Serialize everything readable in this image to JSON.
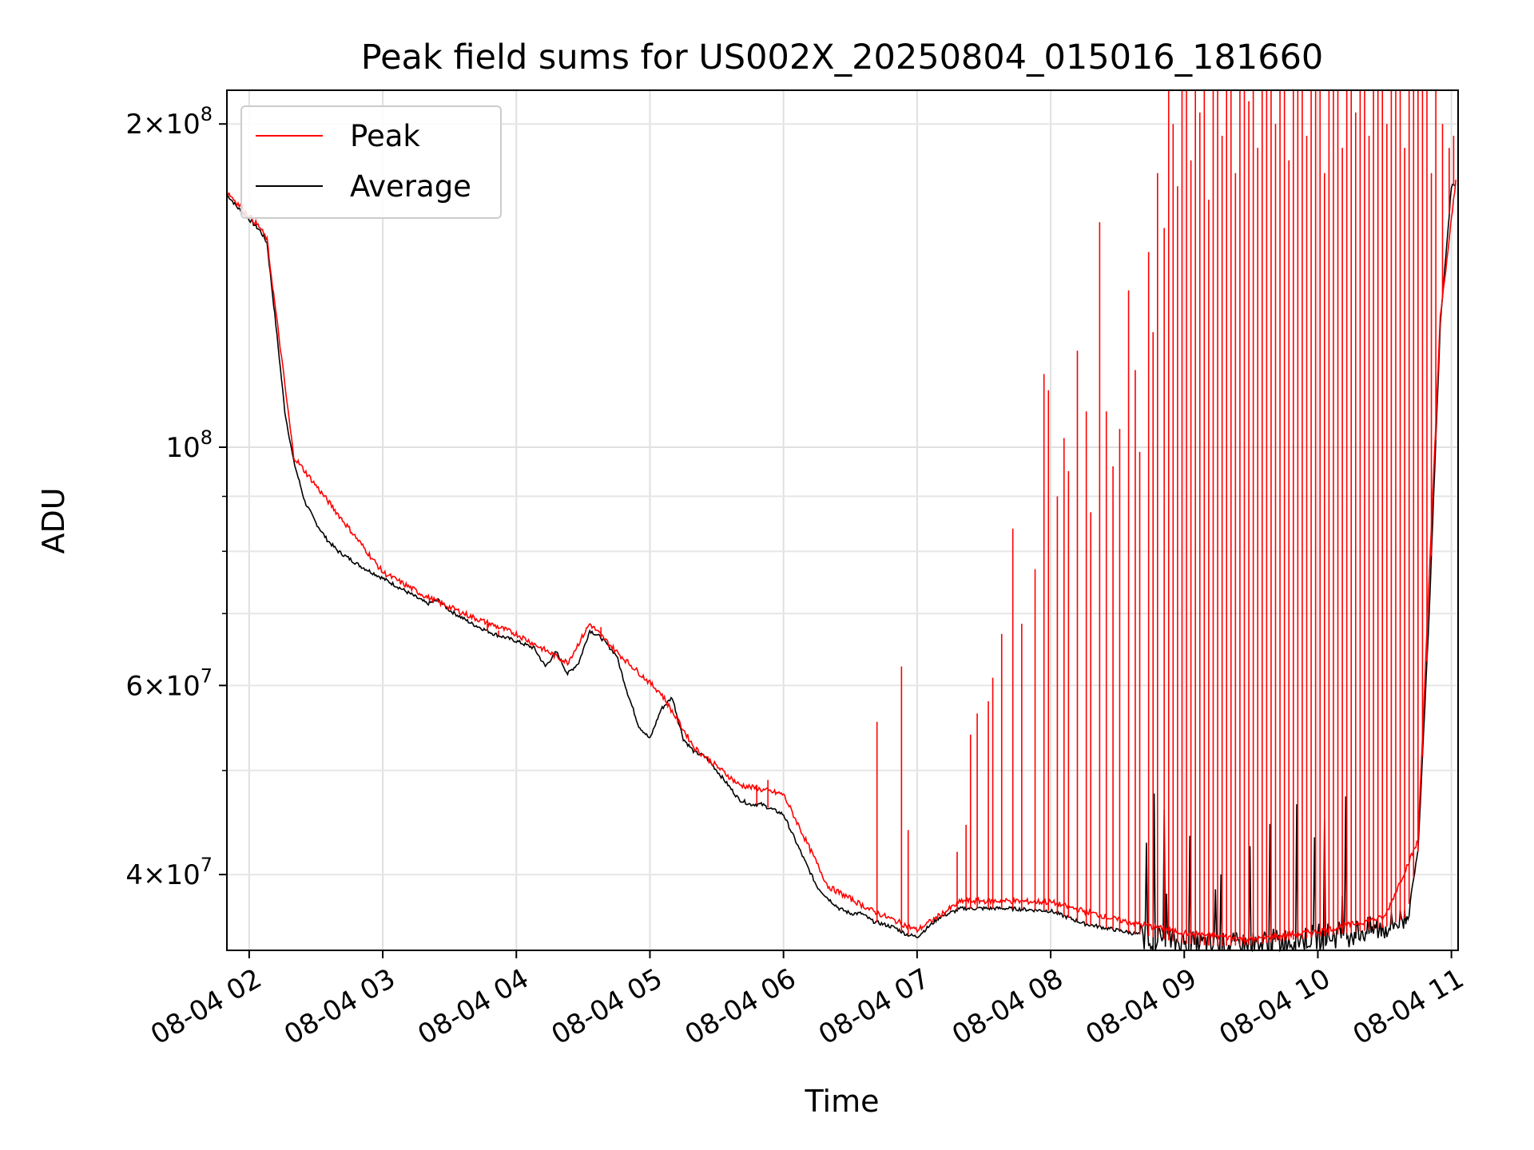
{
  "chart_data": {
    "type": "line",
    "title": "Peak field sums for US002X_20250804_015016_181660",
    "xlabel": "Time",
    "ylabel": "ADU",
    "yscale": "log",
    "xlim": [
      "2025-08-04 01:50",
      "2025-08-04 11:03"
    ],
    "ylim": [
      34000000,
      215000000
    ],
    "grid": true,
    "legend": {
      "placement": "top-left",
      "entries": [
        "Peak",
        "Average"
      ]
    },
    "x_ticks": [
      "08-04 02",
      "08-04 03",
      "08-04 04",
      "08-04 05",
      "08-04 06",
      "08-04 07",
      "08-04 08",
      "08-04 09",
      "08-04 10",
      "08-04 11"
    ],
    "y_ticks": [
      {
        "value": 200000000,
        "mantissa": "2",
        "exponent": "8"
      },
      {
        "value": 100000000,
        "mantissa": "",
        "exponent": "8"
      },
      {
        "value": 60000000,
        "mantissa": "6",
        "exponent": "7"
      },
      {
        "value": 40000000,
        "mantissa": "4",
        "exponent": "7"
      }
    ],
    "series": [
      {
        "name": "Average",
        "color": "#000000",
        "x": [
          "2025-08-04 01:50",
          "2025-08-04 01:55",
          "2025-08-04 02:00",
          "2025-08-04 02:05",
          "2025-08-04 02:08",
          "2025-08-04 02:12",
          "2025-08-04 02:16",
          "2025-08-04 02:20",
          "2025-08-04 02:25",
          "2025-08-04 02:30",
          "2025-08-04 02:35",
          "2025-08-04 02:40",
          "2025-08-04 02:50",
          "2025-08-04 03:00",
          "2025-08-04 03:10",
          "2025-08-04 03:20",
          "2025-08-04 03:25",
          "2025-08-04 03:30",
          "2025-08-04 03:40",
          "2025-08-04 03:50",
          "2025-08-04 04:00",
          "2025-08-04 04:08",
          "2025-08-04 04:13",
          "2025-08-04 04:18",
          "2025-08-04 04:23",
          "2025-08-04 04:28",
          "2025-08-04 04:33",
          "2025-08-04 04:38",
          "2025-08-04 04:45",
          "2025-08-04 04:50",
          "2025-08-04 04:55",
          "2025-08-04 05:00",
          "2025-08-04 05:05",
          "2025-08-04 05:10",
          "2025-08-04 05:15",
          "2025-08-04 05:20",
          "2025-08-04 05:25",
          "2025-08-04 05:30",
          "2025-08-04 05:35",
          "2025-08-04 05:40",
          "2025-08-04 05:45",
          "2025-08-04 05:50",
          "2025-08-04 06:00",
          "2025-08-04 06:10",
          "2025-08-04 06:15",
          "2025-08-04 06:20",
          "2025-08-04 06:25",
          "2025-08-04 06:30",
          "2025-08-04 06:35",
          "2025-08-04 06:40",
          "2025-08-04 06:50",
          "2025-08-04 06:55",
          "2025-08-04 07:00",
          "2025-08-04 07:10",
          "2025-08-04 07:20",
          "2025-08-04 07:40",
          "2025-08-04 08:00",
          "2025-08-04 08:15",
          "2025-08-04 08:30",
          "2025-08-04 08:45",
          "2025-08-04 09:00",
          "2025-08-04 09:15",
          "2025-08-04 09:30",
          "2025-08-04 09:45",
          "2025-08-04 10:00",
          "2025-08-04 10:15",
          "2025-08-04 10:30",
          "2025-08-04 10:40",
          "2025-08-04 10:45",
          "2025-08-04 10:50",
          "2025-08-04 10:55",
          "2025-08-04 11:00",
          "2025-08-04 11:02"
        ],
        "values": [
          172000000,
          167000000,
          163000000,
          159000000,
          155000000,
          130000000,
          108000000,
          97000000,
          89000000,
          85000000,
          82000000,
          80000000,
          77500000,
          75500000,
          73500000,
          71500000,
          72000000,
          70500000,
          68500000,
          67000000,
          66000000,
          65000000,
          62500000,
          64500000,
          61500000,
          63000000,
          67500000,
          66500000,
          64000000,
          59000000,
          55000000,
          53500000,
          57000000,
          58500000,
          53500000,
          52000000,
          51500000,
          50000000,
          48500000,
          47000000,
          46500000,
          46500000,
          45500000,
          41000000,
          39000000,
          38000000,
          37200000,
          36800000,
          36800000,
          36200000,
          35700000,
          35200000,
          35000000,
          36500000,
          37200000,
          37200000,
          37000000,
          36000000,
          35500000,
          35000000,
          34500000,
          34300000,
          34400000,
          34700000,
          35000000,
          35300000,
          35700000,
          36500000,
          42000000,
          70000000,
          130000000,
          175000000,
          176000000
        ]
      },
      {
        "name": "Peak",
        "color": "#ff0000",
        "x": [
          "2025-08-04 01:50",
          "2025-08-04 02:05",
          "2025-08-04 02:08",
          "2025-08-04 02:20",
          "2025-08-04 03:00",
          "2025-08-04 03:20",
          "2025-08-04 03:40",
          "2025-08-04 04:00",
          "2025-08-04 04:23",
          "2025-08-04 04:33",
          "2025-08-04 04:45",
          "2025-08-04 05:05",
          "2025-08-04 05:20",
          "2025-08-04 05:40",
          "2025-08-04 06:00",
          "2025-08-04 06:20",
          "2025-08-04 06:40",
          "2025-08-04 07:00",
          "2025-08-04 07:20",
          "2025-08-04 07:40",
          "2025-08-04 08:00",
          "2025-08-04 08:30",
          "2025-08-04 09:00",
          "2025-08-04 09:30",
          "2025-08-04 10:00",
          "2025-08-04 10:30",
          "2025-08-04 10:45",
          "2025-08-04 10:55",
          "2025-08-04 11:02"
        ],
        "values": [
          173000000,
          160000000,
          156000000,
          98000000,
          76500000,
          72500000,
          69500000,
          67000000,
          63000000,
          68500000,
          64500000,
          59000000,
          52500000,
          48500000,
          47500000,
          39000000,
          37000000,
          35500000,
          37800000,
          37800000,
          37700000,
          36300000,
          35300000,
          34800000,
          35400000,
          36500000,
          43000000,
          132000000,
          177000000
        ]
      }
    ],
    "spikes": {
      "series": "Peak",
      "samples": [
        {
          "x": "2025-08-04 03:47",
          "y": 68500000
        },
        {
          "x": "2025-08-04 03:52",
          "y": 67500000
        },
        {
          "x": "2025-08-04 04:38",
          "y": 68000000
        },
        {
          "x": "2025-08-04 05:48",
          "y": 48500000
        },
        {
          "x": "2025-08-04 05:53",
          "y": 49000000
        },
        {
          "x": "2025-08-04 06:42",
          "y": 55500000
        },
        {
          "x": "2025-08-04 06:53",
          "y": 62500000
        },
        {
          "x": "2025-08-04 06:56",
          "y": 44000000
        },
        {
          "x": "2025-08-04 07:18",
          "y": 42000000
        },
        {
          "x": "2025-08-04 07:22",
          "y": 44500000
        },
        {
          "x": "2025-08-04 07:24",
          "y": 54000000
        },
        {
          "x": "2025-08-04 07:27",
          "y": 56500000
        },
        {
          "x": "2025-08-04 07:32",
          "y": 58000000
        },
        {
          "x": "2025-08-04 07:34",
          "y": 61000000
        },
        {
          "x": "2025-08-04 07:38",
          "y": 67000000
        },
        {
          "x": "2025-08-04 07:43",
          "y": 84000000
        },
        {
          "x": "2025-08-04 07:47",
          "y": 68500000
        },
        {
          "x": "2025-08-04 07:53",
          "y": 77000000
        },
        {
          "x": "2025-08-04 07:57",
          "y": 117000000
        },
        {
          "x": "2025-08-04 07:59",
          "y": 113000000
        },
        {
          "x": "2025-08-04 08:03",
          "y": 90000000
        },
        {
          "x": "2025-08-04 08:06",
          "y": 102000000
        },
        {
          "x": "2025-08-04 08:08",
          "y": 95000000
        },
        {
          "x": "2025-08-04 08:12",
          "y": 123000000
        },
        {
          "x": "2025-08-04 08:16",
          "y": 108000000
        },
        {
          "x": "2025-08-04 08:18",
          "y": 87000000
        },
        {
          "x": "2025-08-04 08:22",
          "y": 162000000
        },
        {
          "x": "2025-08-04 08:25",
          "y": 108000000
        },
        {
          "x": "2025-08-04 08:28",
          "y": 96000000
        },
        {
          "x": "2025-08-04 08:31",
          "y": 104000000
        },
        {
          "x": "2025-08-04 08:35",
          "y": 140000000
        },
        {
          "x": "2025-08-04 08:38",
          "y": 118000000
        },
        {
          "x": "2025-08-04 08:40",
          "y": 99000000
        },
        {
          "x": "2025-08-04 08:44",
          "y": 152000000
        },
        {
          "x": "2025-08-04 08:46",
          "y": 128000000
        },
        {
          "x": "2025-08-04 08:48",
          "y": 180000000
        },
        {
          "x": "2025-08-04 08:51",
          "y": 160000000
        },
        {
          "x": "2025-08-04 08:53",
          "y": 215000000
        },
        {
          "x": "2025-08-04 08:55",
          "y": 200000000
        },
        {
          "x": "2025-08-04 08:57",
          "y": 175000000
        },
        {
          "x": "2025-08-04 08:59",
          "y": 215000000
        },
        {
          "x": "2025-08-04 09:01",
          "y": 215000000
        },
        {
          "x": "2025-08-04 09:03",
          "y": 185000000
        },
        {
          "x": "2025-08-04 09:05",
          "y": 215000000
        },
        {
          "x": "2025-08-04 09:07",
          "y": 205000000
        },
        {
          "x": "2025-08-04 09:09",
          "y": 215000000
        },
        {
          "x": "2025-08-04 09:11",
          "y": 170000000
        },
        {
          "x": "2025-08-04 09:13",
          "y": 215000000
        },
        {
          "x": "2025-08-04 09:15",
          "y": 215000000
        },
        {
          "x": "2025-08-04 09:17",
          "y": 195000000
        },
        {
          "x": "2025-08-04 09:19",
          "y": 215000000
        },
        {
          "x": "2025-08-04 09:21",
          "y": 215000000
        },
        {
          "x": "2025-08-04 09:23",
          "y": 180000000
        },
        {
          "x": "2025-08-04 09:25",
          "y": 215000000
        },
        {
          "x": "2025-08-04 09:27",
          "y": 215000000
        },
        {
          "x": "2025-08-04 09:29",
          "y": 210000000
        },
        {
          "x": "2025-08-04 09:31",
          "y": 215000000
        },
        {
          "x": "2025-08-04 09:33",
          "y": 190000000
        },
        {
          "x": "2025-08-04 09:35",
          "y": 215000000
        },
        {
          "x": "2025-08-04 09:37",
          "y": 215000000
        },
        {
          "x": "2025-08-04 09:39",
          "y": 215000000
        },
        {
          "x": "2025-08-04 09:41",
          "y": 200000000
        },
        {
          "x": "2025-08-04 09:43",
          "y": 215000000
        },
        {
          "x": "2025-08-04 09:45",
          "y": 215000000
        },
        {
          "x": "2025-08-04 09:47",
          "y": 185000000
        },
        {
          "x": "2025-08-04 09:49",
          "y": 215000000
        },
        {
          "x": "2025-08-04 09:51",
          "y": 215000000
        },
        {
          "x": "2025-08-04 09:53",
          "y": 215000000
        },
        {
          "x": "2025-08-04 09:55",
          "y": 195000000
        },
        {
          "x": "2025-08-04 09:57",
          "y": 215000000
        },
        {
          "x": "2025-08-04 09:59",
          "y": 215000000
        },
        {
          "x": "2025-08-04 10:01",
          "y": 215000000
        },
        {
          "x": "2025-08-04 10:03",
          "y": 180000000
        },
        {
          "x": "2025-08-04 10:05",
          "y": 215000000
        },
        {
          "x": "2025-08-04 10:07",
          "y": 215000000
        },
        {
          "x": "2025-08-04 10:09",
          "y": 215000000
        },
        {
          "x": "2025-08-04 10:11",
          "y": 190000000
        },
        {
          "x": "2025-08-04 10:13",
          "y": 215000000
        },
        {
          "x": "2025-08-04 10:15",
          "y": 215000000
        },
        {
          "x": "2025-08-04 10:17",
          "y": 205000000
        },
        {
          "x": "2025-08-04 10:19",
          "y": 215000000
        },
        {
          "x": "2025-08-04 10:21",
          "y": 215000000
        },
        {
          "x": "2025-08-04 10:23",
          "y": 195000000
        },
        {
          "x": "2025-08-04 10:25",
          "y": 215000000
        },
        {
          "x": "2025-08-04 10:27",
          "y": 215000000
        },
        {
          "x": "2025-08-04 10:29",
          "y": 215000000
        },
        {
          "x": "2025-08-04 10:31",
          "y": 200000000
        },
        {
          "x": "2025-08-04 10:33",
          "y": 215000000
        },
        {
          "x": "2025-08-04 10:35",
          "y": 215000000
        },
        {
          "x": "2025-08-04 10:37",
          "y": 215000000
        },
        {
          "x": "2025-08-04 10:39",
          "y": 190000000
        },
        {
          "x": "2025-08-04 10:41",
          "y": 215000000
        },
        {
          "x": "2025-08-04 10:43",
          "y": 215000000
        },
        {
          "x": "2025-08-04 10:45",
          "y": 215000000
        },
        {
          "x": "2025-08-04 10:47",
          "y": 215000000
        },
        {
          "x": "2025-08-04 10:49",
          "y": 215000000
        },
        {
          "x": "2025-08-04 10:51",
          "y": 180000000
        },
        {
          "x": "2025-08-04 10:53",
          "y": 215000000
        },
        {
          "x": "2025-08-04 10:56",
          "y": 200000000
        },
        {
          "x": "2025-08-04 10:59",
          "y": 190000000
        },
        {
          "x": "2025-08-04 11:01",
          "y": 195000000
        }
      ]
    }
  }
}
